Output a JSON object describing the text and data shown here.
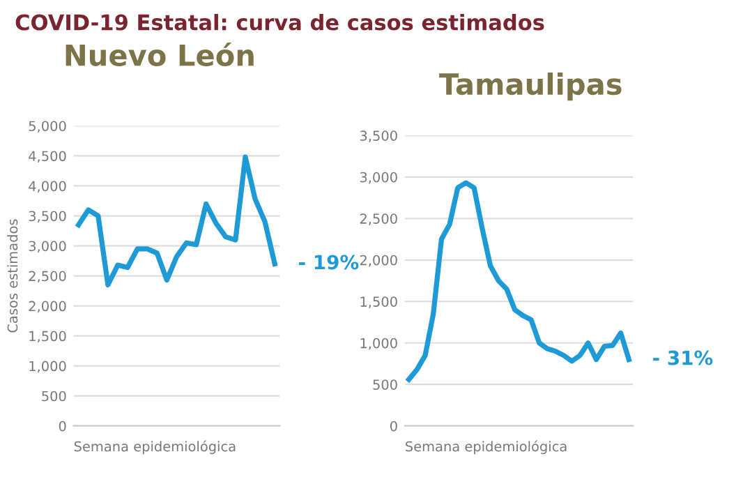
{
  "chart_data": [
    {
      "type": "line",
      "title": "COVID-19 Estatal: curva de casos estimados",
      "subtitle": "Nuevo León",
      "ylabel": "Casos estimados",
      "xlabel": "Semana epidemiológica",
      "categories": [
        null,
        null,
        null,
        null,
        null,
        null,
        null,
        null,
        null,
        null,
        null,
        null,
        null,
        null,
        null,
        null,
        null,
        null,
        null,
        null,
        null
      ],
      "series": [
        {
          "color": "#1e9ad6",
          "values": [
            3350,
            3600,
            3500,
            2350,
            2680,
            2640,
            2950,
            2950,
            2880,
            2430,
            2820,
            3050,
            3020,
            3700,
            3380,
            3150,
            3100,
            4480,
            3780,
            3400,
            2700
          ]
        }
      ],
      "ylim": [
        0,
        5000
      ],
      "yticks": [
        {
          "value": 0,
          "label": "0"
        },
        {
          "value": 500,
          "label": "500"
        },
        {
          "value": 1000,
          "label": "1,000"
        },
        {
          "value": 1500,
          "label": "1,500"
        },
        {
          "value": 2000,
          "label": "2,000"
        },
        {
          "value": 2500,
          "label": "2,500"
        },
        {
          "value": 3000,
          "label": "3,000"
        },
        {
          "value": 3500,
          "label": "3,500"
        },
        {
          "value": 4000,
          "label": "4,000"
        },
        {
          "value": 4500,
          "label": "4,500"
        },
        {
          "value": 5000,
          "label": "5,000"
        }
      ],
      "grid": "y",
      "marker": "none",
      "line_style": "solid",
      "annotations": [
        "- 19%"
      ]
    },
    {
      "type": "line",
      "subtitle": "Tamaulipas",
      "xlabel": "Semana epidemiológica",
      "categories": [
        null,
        null,
        null,
        null,
        null,
        null,
        null,
        null,
        null,
        null,
        null,
        null,
        null,
        null,
        null,
        null,
        null,
        null,
        null,
        null,
        null,
        null,
        null,
        null,
        null,
        null,
        null,
        null
      ],
      "series": [
        {
          "color": "#1e9ad6",
          "values": [
            560,
            680,
            850,
            1350,
            2250,
            2430,
            2870,
            2930,
            2870,
            2380,
            1930,
            1750,
            1650,
            1400,
            1330,
            1280,
            1000,
            930,
            900,
            850,
            780,
            850,
            1000,
            800,
            960,
            970,
            1120,
            800
          ]
        }
      ],
      "ylim": [
        0,
        3500
      ],
      "yticks": [
        {
          "value": 0,
          "label": "0"
        },
        {
          "value": 500,
          "label": "500"
        },
        {
          "value": 1000,
          "label": "1,000"
        },
        {
          "value": 1500,
          "label": "1,500"
        },
        {
          "value": 2000,
          "label": "2,000"
        },
        {
          "value": 2500,
          "label": "2,500"
        },
        {
          "value": 3000,
          "label": "3,000"
        },
        {
          "value": 3500,
          "label": "3,500"
        }
      ],
      "grid": "y",
      "marker": "none",
      "line_style": "solid",
      "annotations": [
        "- 31%"
      ]
    }
  ]
}
